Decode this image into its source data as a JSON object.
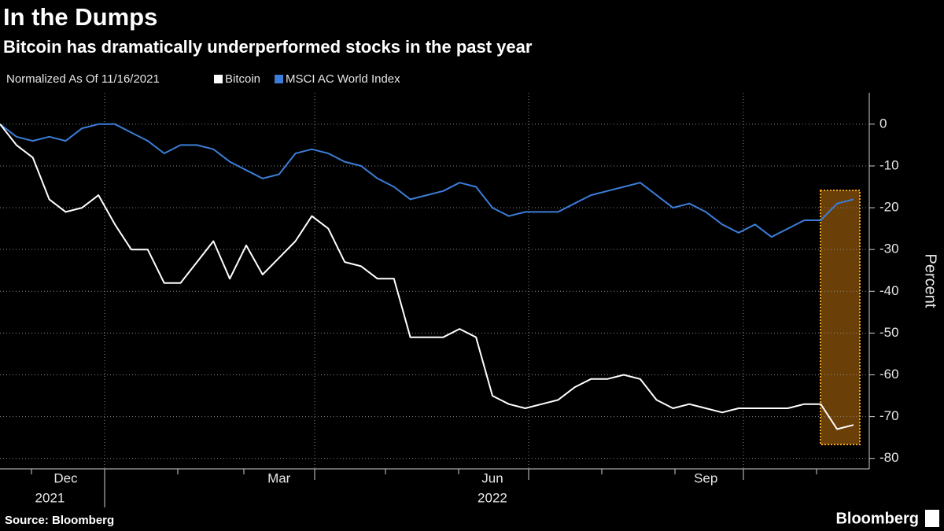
{
  "chart_data": {
    "type": "line",
    "title": "In the Dumps",
    "subtitle": "Bitcoin has dramatically underperformed stocks in the past year",
    "legend_title": "Normalized As Of 11/16/2021",
    "y_label": "Percent",
    "source": "Source: Bloomberg",
    "brand": "Bloomberg",
    "categories": [
      null,
      null,
      null,
      null,
      "Dec",
      null,
      null,
      null,
      null,
      null,
      null,
      null,
      null,
      null,
      null,
      null,
      null,
      "Mar",
      null,
      null,
      null,
      null,
      null,
      null,
      null,
      null,
      null,
      null,
      null,
      null,
      "Jun",
      null,
      null,
      null,
      null,
      null,
      null,
      null,
      null,
      null,
      null,
      null,
      null,
      "Sep",
      null,
      null,
      null,
      null,
      null,
      null,
      null,
      null,
      null
    ],
    "year_categories": [
      null,
      null,
      null,
      null,
      "2021",
      null,
      null,
      null,
      null,
      null,
      null,
      null,
      null,
      null,
      null,
      null,
      null,
      null,
      null,
      null,
      null,
      null,
      null,
      null,
      null,
      null,
      null,
      null,
      null,
      null,
      "2022",
      null,
      null,
      null,
      null,
      null,
      null,
      null,
      null,
      null,
      null,
      null,
      null,
      null,
      null,
      null,
      null,
      null,
      null,
      null,
      null,
      null,
      null
    ],
    "series": [
      {
        "name": "Bitcoin",
        "color": "#ffffff",
        "values": [
          0,
          -5,
          -8,
          -18,
          -21,
          -20,
          -17,
          -24,
          -30,
          -30,
          -38,
          -38,
          -33,
          -28,
          -37,
          -29,
          -36,
          -32,
          -28,
          -22,
          -25,
          -33,
          -34,
          -37,
          -37,
          -51,
          -51,
          -51,
          -49,
          -51,
          -65,
          -67,
          -68,
          -67,
          -66,
          -63,
          -61,
          -61,
          -60,
          -61,
          -66,
          -68,
          -67,
          -68,
          -69,
          -68,
          -68,
          -68,
          -68,
          -67,
          -67,
          -73,
          -72
        ]
      },
      {
        "name": "MSCI AC World Index",
        "color": "#3b7dd8",
        "values": [
          0,
          -3,
          -4,
          -3,
          -4,
          -1,
          0,
          0,
          -2,
          -4,
          -7,
          -5,
          -5,
          -6,
          -9,
          -11,
          -13,
          -12,
          -7,
          -6,
          -7,
          -9,
          -10,
          -13,
          -15,
          -18,
          -17,
          -16,
          -14,
          -15,
          -20,
          -22,
          -21,
          -21,
          -21,
          -19,
          -17,
          -16,
          -15,
          -14,
          -17,
          -20,
          -19,
          -21,
          -24,
          -26,
          -24,
          -27,
          -25,
          -23,
          -23,
          -19,
          -18
        ]
      }
    ],
    "ylim": [
      -82.5,
      7.5
    ],
    "yticks": [
      0,
      -10,
      -20,
      -30,
      -40,
      -50,
      -60,
      -70,
      -80
    ],
    "grid": true
  }
}
